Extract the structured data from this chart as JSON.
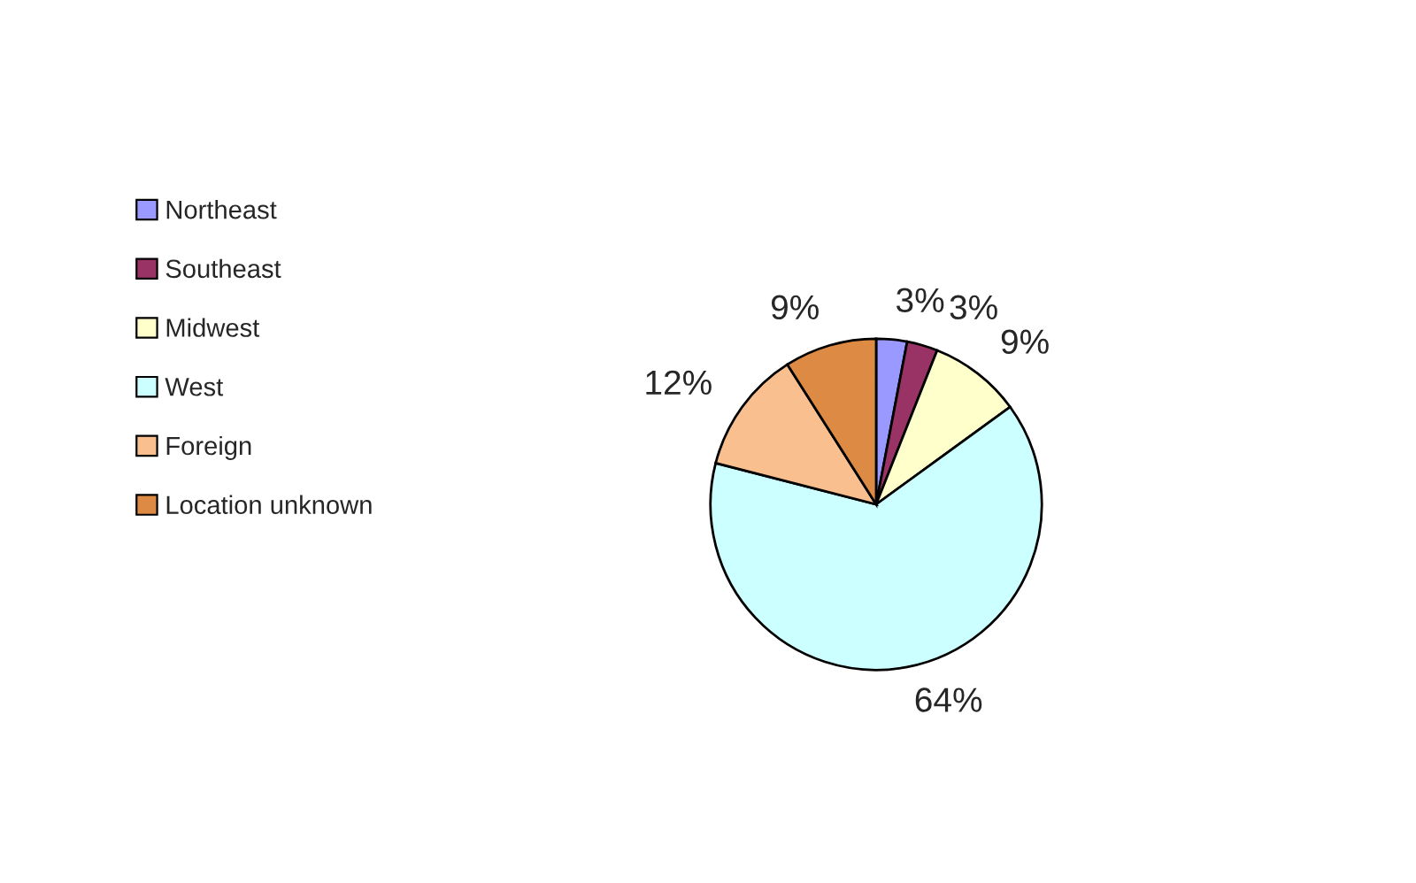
{
  "chart_data": {
    "type": "pie",
    "categories": [
      "Northeast",
      "Southeast",
      "Midwest",
      "West",
      "Foreign",
      "Location unknown"
    ],
    "values": [
      3,
      3,
      9,
      64,
      12,
      9
    ],
    "value_labels": [
      "3%",
      "3%",
      "9%",
      "64%",
      "12%",
      "9%"
    ],
    "colors": [
      "#9999ff",
      "#993366",
      "#ffffcc",
      "#ccffff",
      "#f9bf8f",
      "#dc8a44"
    ],
    "legend": "left"
  }
}
